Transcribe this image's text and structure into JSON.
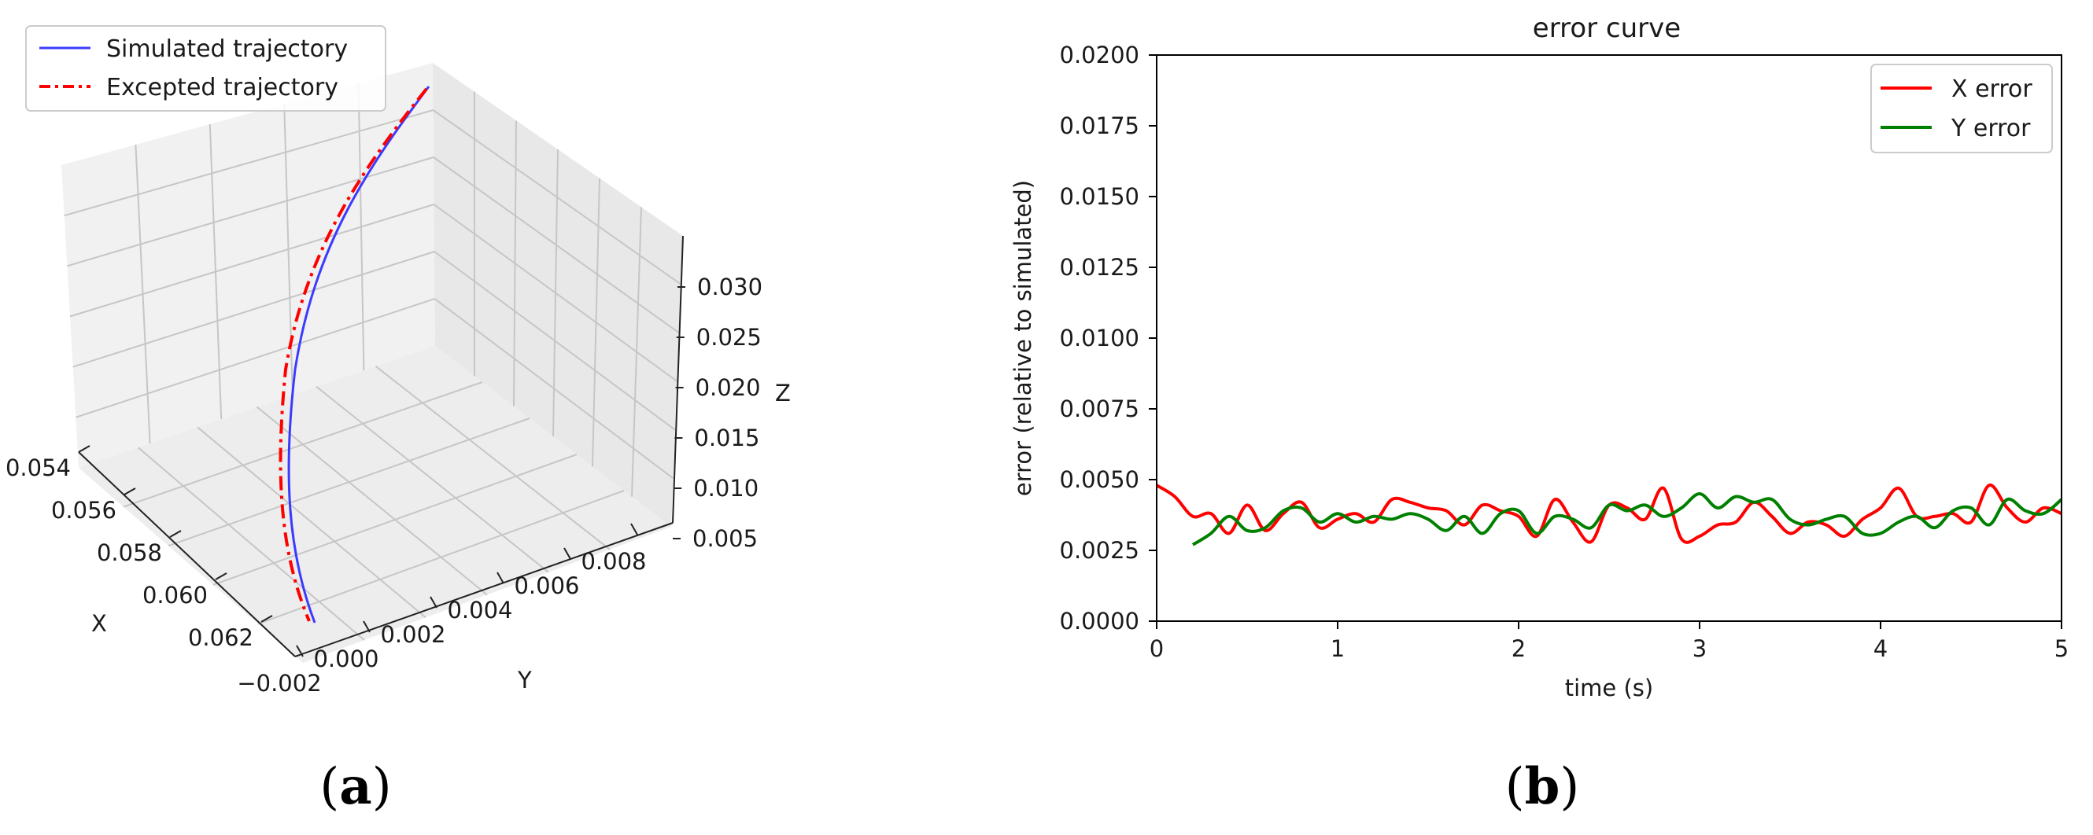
{
  "colors": {
    "simulated": "#3b3bff",
    "expected": "#ff0000",
    "x_error": "#ff0000",
    "y_error": "#008000",
    "pane_light": "#f2f2f2",
    "pane_mid": "#e9e9e9"
  },
  "panels": {
    "a": {
      "open": "(",
      "letter": "a",
      "close": ")"
    },
    "b": {
      "open": "(",
      "letter": "b",
      "close": ")"
    }
  },
  "chart_data": [
    {
      "type": "line3d",
      "title": "",
      "xlabel": "X",
      "ylabel": "Y",
      "zlabel": "Z",
      "x_ticks": [
        "0.054",
        "0.056",
        "0.058",
        "0.060",
        "0.062"
      ],
      "y_ticks": [
        "−0.002",
        "0.000",
        "0.002",
        "0.004",
        "0.006",
        "0.008"
      ],
      "z_ticks": [
        "0.005",
        "0.010",
        "0.015",
        "0.020",
        "0.025",
        "0.030"
      ],
      "legend": [
        {
          "label": "Simulated trajectory",
          "style": "solid"
        },
        {
          "label": "Excepted trajectory",
          "style": "dashdot"
        }
      ],
      "legend_position": "top-left",
      "grid": true
    },
    {
      "type": "line",
      "title": "error curve",
      "xlabel": "time (s)",
      "ylabel": "error (relative to simulated)",
      "xlim": [
        0,
        5
      ],
      "ylim": [
        0,
        0.02
      ],
      "x_ticks": [
        "0",
        "1",
        "2",
        "3",
        "4",
        "5"
      ],
      "y_ticks": [
        "0.0000",
        "0.0025",
        "0.0050",
        "0.0075",
        "0.0100",
        "0.0125",
        "0.0150",
        "0.0175",
        "0.0200"
      ],
      "legend_position": "top-right",
      "grid": false,
      "series": [
        {
          "name": "X error",
          "x": [
            0,
            0.1,
            0.2,
            0.3,
            0.4,
            0.5,
            0.6,
            0.7,
            0.8,
            0.9,
            1.0,
            1.1,
            1.2,
            1.3,
            1.4,
            1.5,
            1.6,
            1.7,
            1.8,
            1.9,
            2.0,
            2.1,
            2.2,
            2.3,
            2.4,
            2.5,
            2.6,
            2.7,
            2.8,
            2.9,
            3.0,
            3.1,
            3.2,
            3.3,
            3.4,
            3.5,
            3.6,
            3.7,
            3.8,
            3.9,
            4.0,
            4.1,
            4.2,
            4.3,
            4.4,
            4.5,
            4.6,
            4.7,
            4.8,
            4.9,
            5.0
          ],
          "values": [
            0.0048,
            0.0044,
            0.0037,
            0.0038,
            0.0031,
            0.0041,
            0.0032,
            0.0038,
            0.0042,
            0.0033,
            0.0036,
            0.0038,
            0.0035,
            0.0043,
            0.0042,
            0.004,
            0.0039,
            0.0034,
            0.0041,
            0.0039,
            0.0037,
            0.003,
            0.0043,
            0.0035,
            0.0028,
            0.0041,
            0.004,
            0.0036,
            0.0047,
            0.0029,
            0.003,
            0.0034,
            0.0035,
            0.0042,
            0.0037,
            0.0031,
            0.0035,
            0.0034,
            0.003,
            0.0036,
            0.004,
            0.0047,
            0.0037,
            0.0037,
            0.0038,
            0.0035,
            0.0048,
            0.004,
            0.0035,
            0.004,
            0.0038
          ]
        },
        {
          "name": "Y error",
          "x": [
            0.2,
            0.3,
            0.4,
            0.5,
            0.6,
            0.7,
            0.8,
            0.9,
            1.0,
            1.1,
            1.2,
            1.3,
            1.4,
            1.5,
            1.6,
            1.7,
            1.8,
            1.9,
            2.0,
            2.1,
            2.2,
            2.3,
            2.4,
            2.5,
            2.6,
            2.7,
            2.8,
            2.9,
            3.0,
            3.1,
            3.2,
            3.3,
            3.4,
            3.5,
            3.6,
            3.7,
            3.8,
            3.9,
            4.0,
            4.1,
            4.2,
            4.3,
            4.4,
            4.5,
            4.6,
            4.7,
            4.8,
            4.9,
            5.0
          ],
          "values": [
            0.0027,
            0.0031,
            0.0037,
            0.0032,
            0.0033,
            0.0039,
            0.004,
            0.0035,
            0.0038,
            0.0035,
            0.0037,
            0.0036,
            0.0038,
            0.0036,
            0.0032,
            0.0037,
            0.0031,
            0.0038,
            0.0039,
            0.0031,
            0.0037,
            0.0036,
            0.0033,
            0.0041,
            0.0039,
            0.0041,
            0.0037,
            0.004,
            0.0045,
            0.004,
            0.0044,
            0.0042,
            0.0043,
            0.0036,
            0.0034,
            0.0036,
            0.0037,
            0.0031,
            0.0031,
            0.0035,
            0.0037,
            0.0033,
            0.0039,
            0.004,
            0.0034,
            0.0043,
            0.0039,
            0.0038,
            0.0043
          ]
        }
      ]
    }
  ]
}
